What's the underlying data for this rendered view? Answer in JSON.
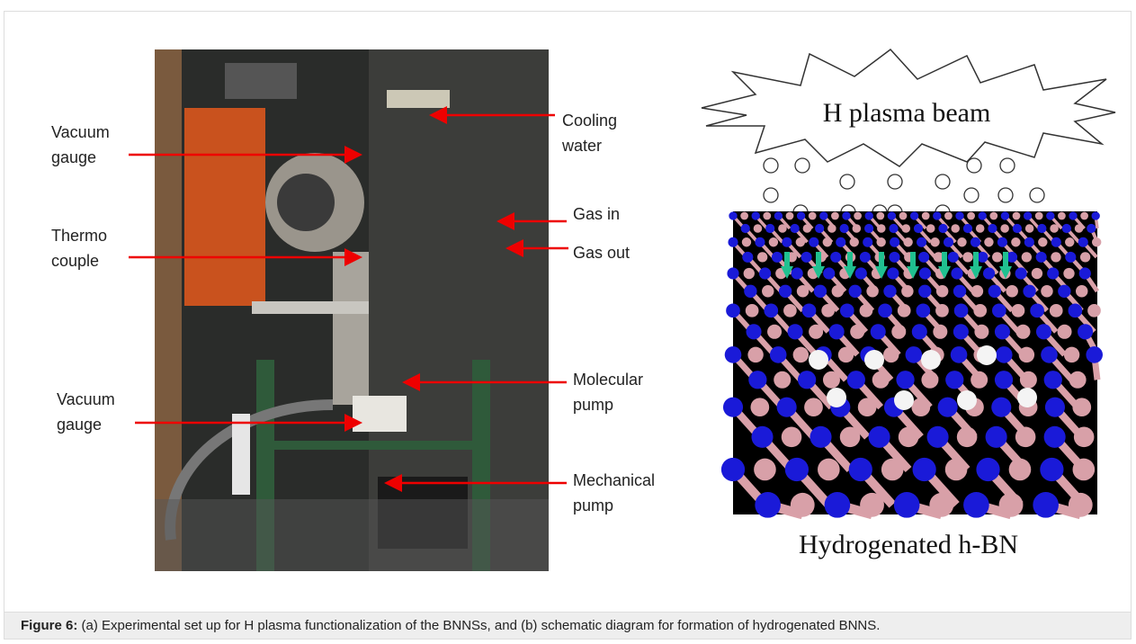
{
  "figure": {
    "left_labels": [
      {
        "lines": [
          "Vacuum",
          "gauge"
        ]
      },
      {
        "lines": [
          "Thermo",
          "couple"
        ]
      },
      {
        "lines": [
          "Vacuum",
          "gauge"
        ]
      }
    ],
    "right_labels": [
      {
        "lines": [
          "Cooling",
          "water"
        ]
      },
      {
        "lines": [
          "Gas in"
        ]
      },
      {
        "lines": [
          "Gas out"
        ]
      },
      {
        "lines": [
          "Molecular",
          "pump"
        ]
      },
      {
        "lines": [
          "Mechanical",
          "pump"
        ]
      }
    ],
    "plasma_label": "H plasma beam",
    "schematic_label": "Hydrogenated h-BN"
  },
  "caption": {
    "label": "Figure 6:",
    "text": " (a) Experimental set up for H plasma functionalization of the BNNSs, and (b) schematic diagram for formation of hydrogenated BNNS."
  }
}
